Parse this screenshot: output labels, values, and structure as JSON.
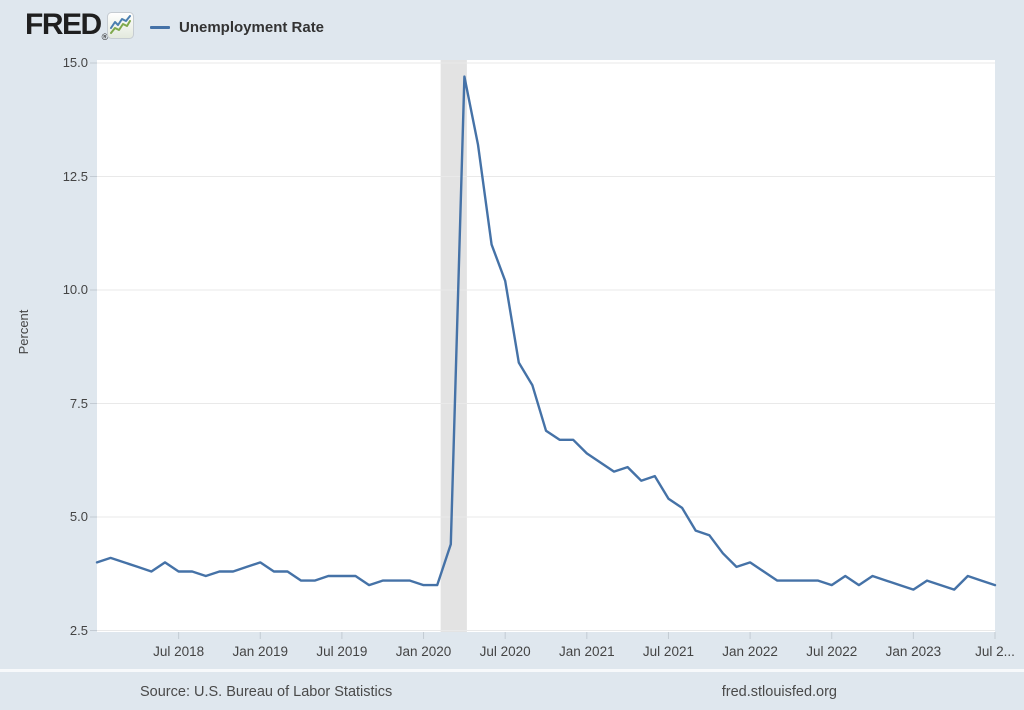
{
  "header": {
    "logo_text": "FRED",
    "registered_mark": "®",
    "logo_icon": "sparkline-chart-icon",
    "legend": {
      "label": "Unemployment Rate",
      "line_color": "#4572a7"
    }
  },
  "chart_data": {
    "type": "line",
    "title": "Unemployment Rate",
    "series_name": "Unemployment Rate",
    "ylabel": "Percent",
    "frequency": "monthly",
    "x_start": "2018-01",
    "x_end": "2023-07",
    "values": [
      4.0,
      4.1,
      4.0,
      3.9,
      3.8,
      4.0,
      3.8,
      3.8,
      3.7,
      3.8,
      3.8,
      3.9,
      4.0,
      3.8,
      3.8,
      3.6,
      3.6,
      3.7,
      3.7,
      3.7,
      3.5,
      3.6,
      3.6,
      3.6,
      3.5,
      3.5,
      4.4,
      14.7,
      13.2,
      11.0,
      10.2,
      8.4,
      7.9,
      6.9,
      6.7,
      6.7,
      6.4,
      6.2,
      6.0,
      6.1,
      5.8,
      5.9,
      5.4,
      5.2,
      4.7,
      4.6,
      4.2,
      3.9,
      4.0,
      3.8,
      3.6,
      3.6,
      3.6,
      3.6,
      3.5,
      3.7,
      3.5,
      3.7,
      3.6,
      3.5,
      3.4,
      3.6,
      3.5,
      3.4,
      3.7,
      3.6,
      3.5
    ],
    "ylim": [
      2.5,
      15.0
    ],
    "y_ticks": [
      2.5,
      5.0,
      7.5,
      10.0,
      12.5,
      15.0
    ],
    "y_tick_labels": [
      "2.5",
      "5.0",
      "7.5",
      "10.0",
      "12.5",
      "15.0"
    ],
    "x_tick_labels": [
      "Jul 2018",
      "Jan 2019",
      "Jul 2019",
      "Jan 2020",
      "Jul 2020",
      "Jan 2021",
      "Jul 2021",
      "Jan 2022",
      "Jul 2022",
      "Jan 2023",
      "Jul 2..."
    ],
    "grid": true,
    "legend_position": "top-left",
    "line_color": "#4572a7",
    "recession_band": {
      "start": "2020-02",
      "end": "2020-04",
      "color": "#e3e3e3"
    }
  },
  "footer": {
    "source": "Source: U.S. Bureau of Labor Statistics",
    "site": "fred.stlouisfed.org"
  },
  "colors": {
    "background": "#dfe7ee",
    "plot_background": "#ffffff",
    "gridline": "#e9e9e9",
    "tick_mark": "#c3cbd3",
    "axis_text": "#444444",
    "footer_text": "#4a4a4a",
    "legend_text": "#333333",
    "logo_text": "#1f1f1f",
    "icon_blue": "#4b7fb0",
    "icon_green": "#7fa94c"
  }
}
